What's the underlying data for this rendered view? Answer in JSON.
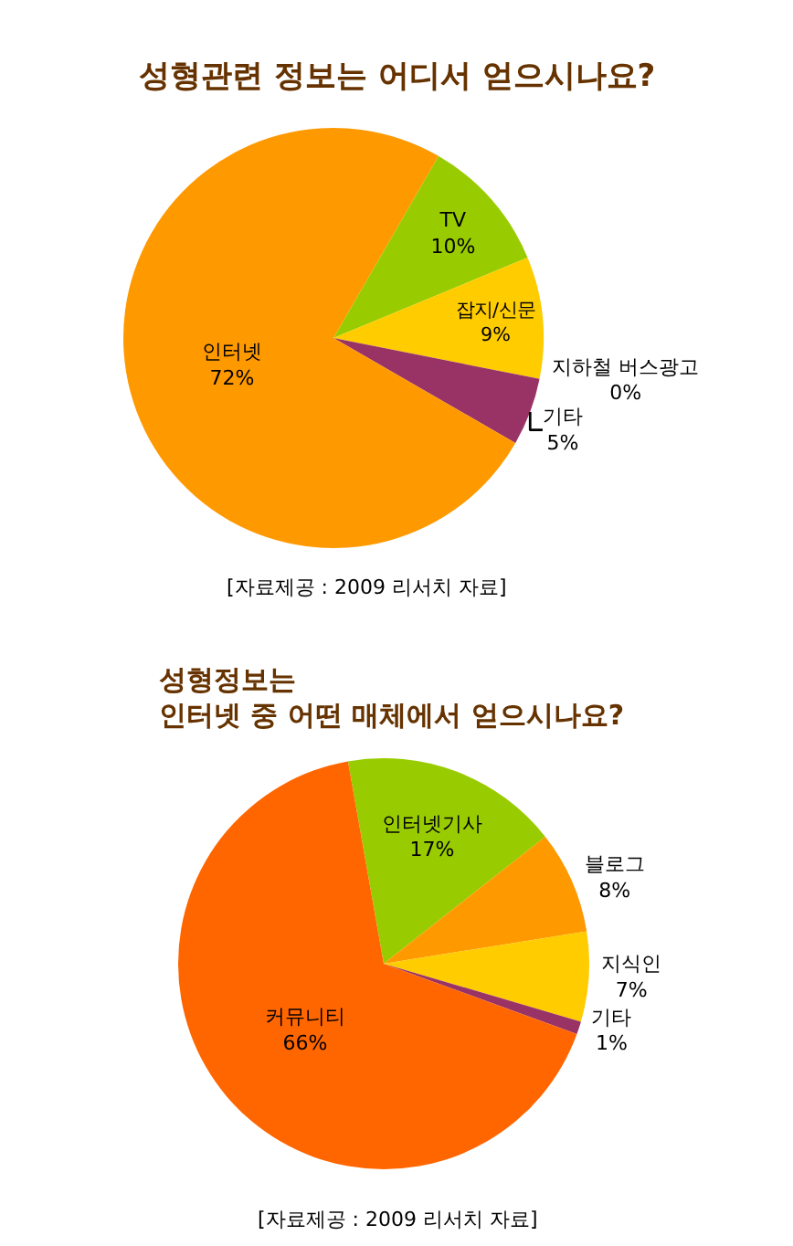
{
  "chart_data": [
    {
      "type": "pie",
      "title": "성형관련 정보는 어디서 얻으시나요?",
      "categories": [
        "TV",
        "잡지/신문",
        "지하철 버스광고",
        "기타",
        "인터넷"
      ],
      "values": [
        10,
        9,
        0,
        5,
        72
      ],
      "value_labels": [
        "10%",
        "9%",
        "0%",
        "5%",
        "72%"
      ],
      "colors": [
        "#99cc00",
        "#ffcc00",
        "#cc6699",
        "#993366",
        "#ff9900"
      ],
      "annotations": [
        "[자료제공 : 2009 리서치 자료]"
      ]
    },
    {
      "type": "pie",
      "title": "성형정보는\n인터넷 중 어떤 매체에서 얻으시나요?",
      "categories": [
        "인터넷기사",
        "블로그",
        "지식인",
        "기타",
        "커뮤니티"
      ],
      "values": [
        17,
        8,
        7,
        1,
        66
      ],
      "value_labels": [
        "17%",
        "8%",
        "7%",
        "1%",
        "66%"
      ],
      "colors": [
        "#99cc00",
        "#ff9900",
        "#ffcc00",
        "#993366",
        "#ff6600"
      ],
      "annotations": [
        "[자료제공 : 2009 리서치 자료]"
      ]
    }
  ]
}
